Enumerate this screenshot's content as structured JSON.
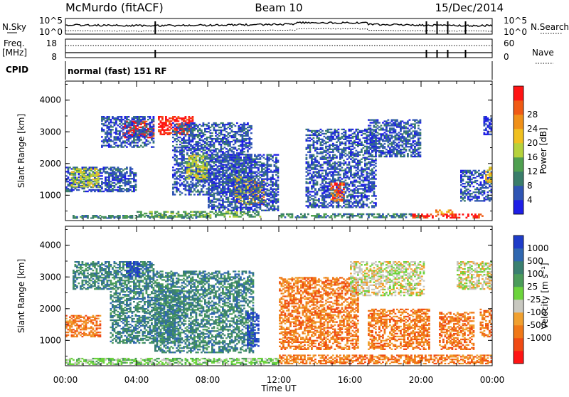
{
  "header": {
    "station": "McMurdo (fitACF)",
    "beam": "Beam 10",
    "date": "15/Dec/2014"
  },
  "top_panels": {
    "nsky_label": "N.Sky",
    "nsky_ticks": [
      "10^5",
      "10^0"
    ],
    "nsearch_label": "N.Search",
    "nsearch_ticks": [
      "10^5",
      "10^0"
    ],
    "freq_label_1": "Freq.",
    "freq_label_2": "[MHz]",
    "freq_ticks": [
      "18",
      "8"
    ],
    "nave_label": "Nave",
    "nave_ticks": [
      "60",
      "0"
    ],
    "cpid_label": "CPID",
    "cpid_text": "normal (fast) 151 RF"
  },
  "colors": {
    "power_scale": [
      "#1e1ee6",
      "#2f55b4",
      "#3a7d6a",
      "#4fa050",
      "#b6d23c",
      "#f0c020",
      "#f09018",
      "#f05a14",
      "#ff1414"
    ],
    "velocity_scale": [
      "#1e3cc8",
      "#2f67b0",
      "#3a8070",
      "#4b9c5a",
      "#6cd43c",
      "#c8c8c0",
      "#f0a030",
      "#f07818",
      "#f04a14",
      "#ff1414"
    ]
  },
  "chart_data": [
    {
      "type": "heatmap",
      "name": "power",
      "xlabel": "",
      "ylabel": "Slant Range [km]",
      "x_ticks": [
        "00:00",
        "04:00",
        "08:00",
        "12:00",
        "16:00",
        "20:00",
        "00:00"
      ],
      "y_ticks": [
        "1000",
        "2000",
        "3000",
        "4000"
      ],
      "ylim": [
        200,
        4600
      ],
      "colorbar_label": "Power [dB]",
      "colorbar_ticks": [
        "4",
        "8",
        "12",
        "16",
        "20",
        "24",
        "28"
      ],
      "blobs": [
        {
          "x": 0.3,
          "y": 260,
          "w": 8.0,
          "h": 120,
          "v": 2
        },
        {
          "x": 4.0,
          "y": 300,
          "w": 7.0,
          "h": 200,
          "v": 3
        },
        {
          "x": 12.0,
          "y": 280,
          "w": 8.0,
          "h": 150,
          "v": 2
        },
        {
          "x": 19.5,
          "y": 270,
          "w": 4.0,
          "h": 150,
          "v": 8
        },
        {
          "x": 20.8,
          "y": 400,
          "w": 1.0,
          "h": 150,
          "v": 6
        },
        {
          "x": 0.0,
          "y": 1100,
          "w": 4.0,
          "h": 800,
          "v": 1
        },
        {
          "x": 0.3,
          "y": 1250,
          "w": 1.6,
          "h": 600,
          "v": 4
        },
        {
          "x": 3.2,
          "y": 2800,
          "w": 1.8,
          "h": 550,
          "v": 8
        },
        {
          "x": 2.0,
          "y": 2500,
          "w": 3.0,
          "h": 1000,
          "v": 1
        },
        {
          "x": 5.2,
          "y": 2900,
          "w": 2.0,
          "h": 600,
          "v": 8
        },
        {
          "x": 6.0,
          "y": 1000,
          "w": 4.5,
          "h": 2300,
          "v": 1
        },
        {
          "x": 6.8,
          "y": 1500,
          "w": 1.2,
          "h": 800,
          "v": 4
        },
        {
          "x": 9.5,
          "y": 700,
          "w": 1.2,
          "h": 900,
          "v": 5
        },
        {
          "x": 10.4,
          "y": 700,
          "w": 0.8,
          "h": 800,
          "v": 6
        },
        {
          "x": 8.0,
          "y": 500,
          "w": 4.0,
          "h": 1800,
          "v": 1
        },
        {
          "x": 13.5,
          "y": 600,
          "w": 4.0,
          "h": 2500,
          "v": 1
        },
        {
          "x": 14.9,
          "y": 800,
          "w": 0.8,
          "h": 600,
          "v": 7
        },
        {
          "x": 17.0,
          "y": 2200,
          "w": 3.0,
          "h": 1200,
          "v": 1
        },
        {
          "x": 22.2,
          "y": 800,
          "w": 1.8,
          "h": 1000,
          "v": 1
        },
        {
          "x": 23.6,
          "y": 1400,
          "w": 0.4,
          "h": 500,
          "v": 5
        },
        {
          "x": 23.5,
          "y": 2900,
          "w": 0.5,
          "h": 600,
          "v": 0
        }
      ]
    },
    {
      "type": "heatmap",
      "name": "velocity",
      "xlabel": "Time UT",
      "ylabel": "Slant Range [km]",
      "x_ticks": [
        "00:00",
        "04:00",
        "08:00",
        "12:00",
        "16:00",
        "20:00",
        "00:00"
      ],
      "y_ticks": [
        "1000",
        "2000",
        "3000",
        "4000"
      ],
      "ylim": [
        200,
        4600
      ],
      "colorbar_label": "Velocity [m s⁻¹]",
      "colorbar_ticks": [
        "1000",
        "500",
        "100",
        "25",
        "-25",
        "-100",
        "-500",
        "-1000"
      ],
      "blobs": [
        {
          "x": 0.0,
          "y": 230,
          "w": 12.0,
          "h": 220,
          "v": 4
        },
        {
          "x": 12.0,
          "y": 250,
          "w": 12.0,
          "h": 300,
          "v": 7
        },
        {
          "x": 0.4,
          "y": 2600,
          "w": 4.6,
          "h": 900,
          "v": 2
        },
        {
          "x": 3.4,
          "y": 3000,
          "w": 0.8,
          "h": 500,
          "v": 0
        },
        {
          "x": 2.5,
          "y": 900,
          "w": 4.0,
          "h": 1700,
          "v": 2
        },
        {
          "x": 5.0,
          "y": 600,
          "w": 5.6,
          "h": 2600,
          "v": 2
        },
        {
          "x": 10.2,
          "y": 800,
          "w": 0.7,
          "h": 1100,
          "v": 0
        },
        {
          "x": 0.0,
          "y": 1100,
          "w": 2.0,
          "h": 700,
          "v": 7
        },
        {
          "x": 12.0,
          "y": 700,
          "w": 4.5,
          "h": 2300,
          "v": 7
        },
        {
          "x": 16.0,
          "y": 2400,
          "w": 4.2,
          "h": 1100,
          "v": 5
        },
        {
          "x": 17.0,
          "y": 700,
          "w": 3.5,
          "h": 1300,
          "v": 7
        },
        {
          "x": 21.0,
          "y": 700,
          "w": 2.0,
          "h": 1200,
          "v": 7
        },
        {
          "x": 23.3,
          "y": 1100,
          "w": 0.7,
          "h": 900,
          "v": 7
        },
        {
          "x": 22.0,
          "y": 2600,
          "w": 2.0,
          "h": 900,
          "v": 5
        }
      ]
    }
  ]
}
